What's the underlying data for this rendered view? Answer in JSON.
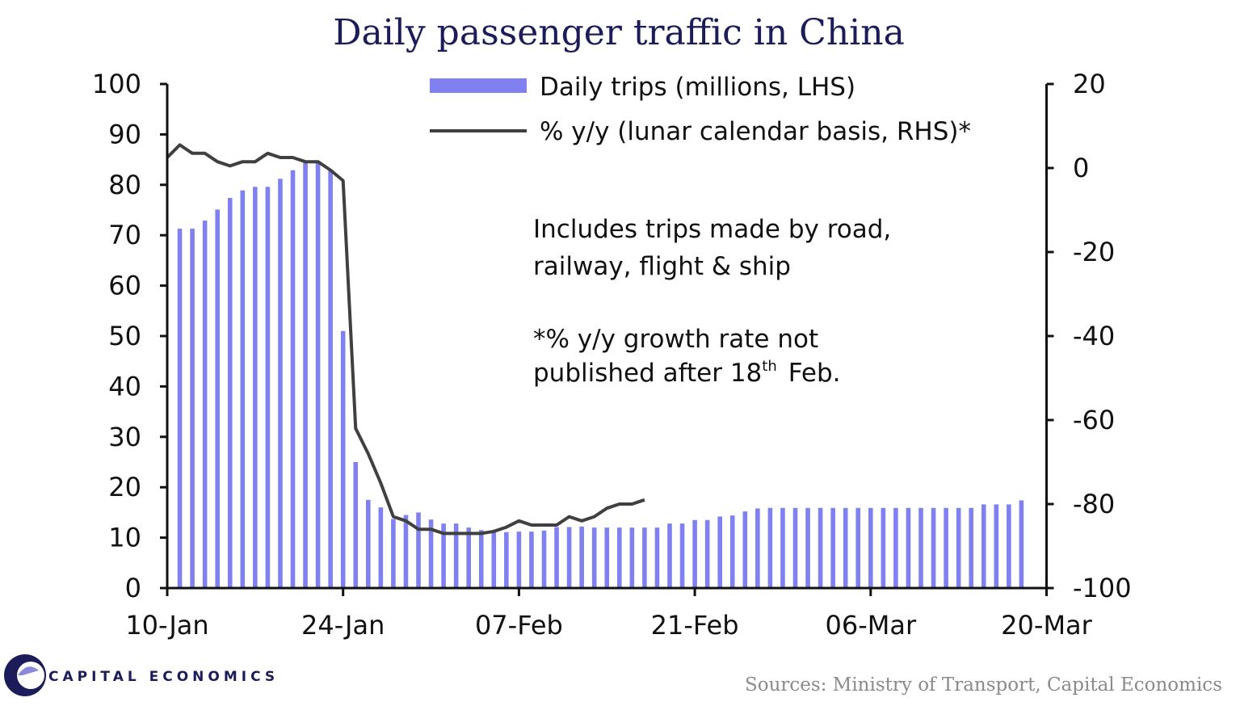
{
  "chart_data": {
    "type": "bar",
    "title": "Daily passenger traffic in China",
    "legend": [
      "Daily trips (millions, LHS)",
      "% y/y (lunar calendar basis, RHS)*"
    ],
    "legend_placement": "top-center",
    "annotation_lines": [
      "Includes  trips  made by  road,",
      "railway,  flight  & ship"
    ],
    "footnote_line1": "*% y/y growth  rate not",
    "footnote_line2_prefix": "published  after 18",
    "footnote_line2_sup": "th",
    "footnote_line2_suffix": "Feb.",
    "x_tick_labels": [
      "10-Jan",
      "24-Jan",
      "07-Feb",
      "21-Feb",
      "06-Mar",
      "20-Mar"
    ],
    "y_left_ticks": [
      0,
      10,
      20,
      30,
      40,
      50,
      60,
      70,
      80,
      90,
      100
    ],
    "y_right_ticks": [
      -100,
      -80,
      -60,
      -40,
      -20,
      0,
      20
    ],
    "ylim_left": [
      0,
      100
    ],
    "ylim_right": [
      -100,
      20
    ],
    "grid": false,
    "series": [
      {
        "name": "Daily trips (millions, LHS)",
        "kind": "bar",
        "color": "#8080f0",
        "x_day_start": 1,
        "values": [
          71.3,
          71.3,
          72.9,
          75.1,
          77.4,
          78.9,
          79.6,
          79.6,
          81.2,
          82.9,
          84.7,
          84.7,
          83.0,
          51.0,
          25.0,
          17.5,
          16.0,
          13.7,
          14.5,
          15.0,
          13.6,
          12.8,
          12.8,
          12.0,
          11.5,
          11.3,
          11.1,
          11.2,
          11.2,
          11.4,
          12.1,
          12.1,
          12.2,
          12.0,
          12.0,
          12.0,
          12.0,
          12.0,
          12.0,
          12.8,
          12.8,
          13.5,
          13.5,
          14.2,
          14.4,
          15.2,
          15.8,
          15.9,
          15.9,
          15.9,
          15.9,
          15.9,
          15.9,
          15.9,
          15.9,
          15.9,
          15.9,
          15.9,
          15.9,
          15.9,
          15.9,
          15.9,
          15.9,
          15.9,
          16.6,
          16.6,
          16.6,
          17.4
        ]
      },
      {
        "name": "% y/y (lunar calendar basis, RHS)*",
        "kind": "line",
        "color": "#404040",
        "x_day_start": 0,
        "values": [
          2.5,
          5.5,
          3.5,
          3.5,
          1.5,
          0.5,
          1.5,
          1.5,
          3.5,
          2.5,
          2.5,
          1.5,
          1.5,
          -0.5,
          -3.0,
          -62.0,
          -68.0,
          -75.0,
          -83.0,
          -84.0,
          -86.0,
          -86.0,
          -87.0,
          -87.0,
          -87.0,
          -87.0,
          -86.5,
          -85.5,
          -84.0,
          -85.0,
          -85.0,
          -85.0,
          -83.0,
          -84.0,
          -83.0,
          -81.0,
          -80.0,
          -80.0,
          -79.0
        ]
      }
    ]
  },
  "sources": "Sources: Ministry of Transport, Capital Economics",
  "logo_text": "CAPITAL ECONOMICS",
  "colors": {
    "bar": "#8080f0",
    "line": "#404040",
    "title": "#1c1c5a",
    "sources": "#8a8a8a"
  }
}
